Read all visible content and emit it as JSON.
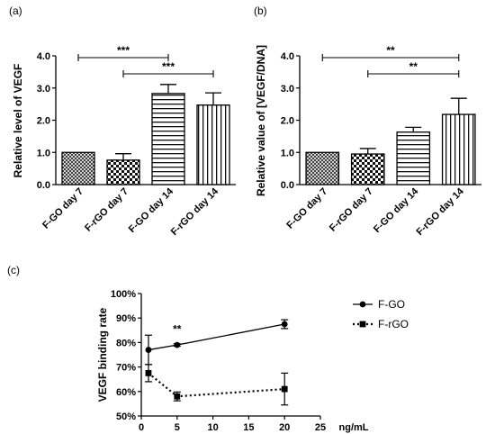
{
  "chart_data": [
    {
      "panel_label": "(a)",
      "type": "bar",
      "ylabel": "Relative level of VEGF",
      "categories": [
        "F-GO day 7",
        "F-rGO day 7",
        "F-GO day 14",
        "F-rGO day 14"
      ],
      "values": [
        1.0,
        0.76,
        2.83,
        2.47
      ],
      "errors": [
        0.0,
        0.2,
        0.28,
        0.38
      ],
      "patterns": [
        "cross",
        "checker",
        "hstripe",
        "vstripe"
      ],
      "ylim": [
        0,
        4
      ],
      "yticks": [
        "0.0",
        "1.0",
        "2.0",
        "3.0",
        "4.0"
      ],
      "significance": [
        {
          "from": 0,
          "to": 2,
          "label": "***"
        },
        {
          "from": 1,
          "to": 3,
          "label": "***"
        }
      ]
    },
    {
      "panel_label": "(b)",
      "type": "bar",
      "ylabel": "Relative value of [VEGF/DNA]",
      "categories": [
        "F-GO day 7",
        "F-rGO day 7",
        "F-GO day 14",
        "F-rGO day 14"
      ],
      "values": [
        1.0,
        0.95,
        1.63,
        2.18
      ],
      "errors": [
        0.0,
        0.17,
        0.15,
        0.5
      ],
      "patterns": [
        "cross",
        "checker",
        "hstripe",
        "vstripe"
      ],
      "ylim": [
        0,
        4
      ],
      "yticks": [
        "0.0",
        "1.0",
        "2.0",
        "3.0",
        "4.0"
      ],
      "significance": [
        {
          "from": 0,
          "to": 3,
          "label": "**"
        },
        {
          "from": 1,
          "to": 3,
          "label": "**"
        }
      ]
    },
    {
      "panel_label": "(c)",
      "type": "line",
      "ylabel": "VEGF binding rate",
      "xlabel": "ng/mL",
      "xlim": [
        0,
        25
      ],
      "xticks": [
        "0",
        "5",
        "10",
        "15",
        "20",
        "25"
      ],
      "ylim": [
        50,
        100
      ],
      "yticks": [
        "50%",
        "60%",
        "70%",
        "80%",
        "90%",
        "100%"
      ],
      "legend_position": "right",
      "annotation": {
        "x": 5,
        "y": 84,
        "label": "**"
      },
      "series": [
        {
          "name": "F-GO",
          "marker": "circle",
          "dash": "solid",
          "x": [
            1,
            5,
            20
          ],
          "y": [
            77,
            79,
            87.5
          ],
          "errors": [
            6,
            0.5,
            1.8
          ]
        },
        {
          "name": "F-rGO",
          "marker": "square",
          "dash": "dotted",
          "x": [
            1,
            5,
            20
          ],
          "y": [
            67.5,
            58,
            61
          ],
          "errors": [
            3.5,
            1.8,
            6.5
          ]
        }
      ]
    }
  ]
}
